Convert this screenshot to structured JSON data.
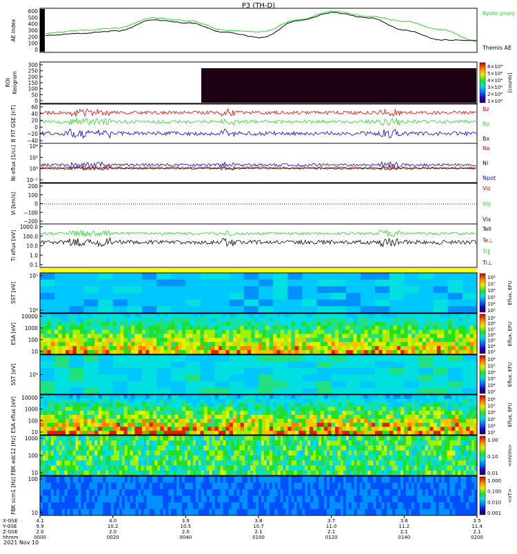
{
  "page": {
    "title": "P3 (TH-D)",
    "footer_date": "2021 Nov 10"
  },
  "time_axis": {
    "row_labels": [
      "X-GSE",
      "Y-GSE",
      "Z-GSE",
      "hhmm"
    ],
    "columns": [
      {
        "x": "4.1",
        "y": "9.9",
        "z": "2.0",
        "t": "0000"
      },
      {
        "x": "4.0",
        "y": "10.2",
        "z": "2.0",
        "t": "0020"
      },
      {
        "x": "3.9",
        "y": "10.5",
        "z": "2.0",
        "t": "0040"
      },
      {
        "x": "3.8",
        "y": "10.7",
        "z": "2.1",
        "t": "0100"
      },
      {
        "x": "3.7",
        "y": "11.0",
        "z": "2.1",
        "t": "0120"
      },
      {
        "x": "3.6",
        "y": "11.2",
        "z": "2.1",
        "t": "0140"
      },
      {
        "x": "3.5",
        "y": "11.4",
        "z": "2.1",
        "t": "0200"
      }
    ]
  },
  "colors": {
    "red": "#e00000",
    "green": "#22dd22",
    "blue": "#0000cc",
    "black": "#000000",
    "keogram_fill": "#1a0010",
    "yellow_band": "#ffff00"
  },
  "chart_data": [
    {
      "id": "ae",
      "type": "line",
      "ylabel": "AE Index",
      "yticks": [
        "600",
        "500",
        "400",
        "300",
        "200",
        "100",
        "0"
      ],
      "ylim": [
        0,
        600
      ],
      "x": [
        0,
        10,
        20,
        30,
        40,
        50,
        60,
        70,
        80,
        90,
        100,
        110,
        120
      ],
      "series": [
        {
          "name": "Kyoto proxy AE",
          "color": "#22dd22",
          "values": [
            260,
            300,
            330,
            470,
            430,
            300,
            280,
            440,
            560,
            490,
            420,
            310,
            150
          ]
        },
        {
          "name": "Themis AE",
          "color": "#000000",
          "values": [
            230,
            260,
            290,
            440,
            400,
            270,
            200,
            430,
            540,
            470,
            300,
            170,
            160
          ]
        }
      ]
    },
    {
      "id": "keogram",
      "type": "heatmap",
      "ylabel1": "ROI",
      "ylabel2": "Keogram",
      "yticks": [
        "300",
        "250",
        "200",
        "150",
        "100",
        "50",
        "0"
      ],
      "colorbar_ticks": [
        "6×10⁴",
        "5×10⁴",
        "4×10⁴",
        "3×10⁴",
        "2×10⁴",
        "1×10⁴"
      ],
      "colorbar_label": "[counts]"
    },
    {
      "id": "bfield",
      "type": "line",
      "ylabel": "B FIT GSE [nT]",
      "yticks": [
        "60",
        "40",
        "20",
        "0",
        "−20",
        "−40"
      ],
      "series": [
        {
          "name": "Bz",
          "color": "#e00000"
        },
        {
          "name": "By",
          "color": "#22dd22"
        },
        {
          "name": "Bx",
          "color": "#0000cc"
        }
      ]
    },
    {
      "id": "density",
      "type": "line",
      "ylabel": "Ni eflux [1/cc]",
      "yticks": [
        "10⁴",
        "10²",
        "10⁰",
        "10⁻²"
      ],
      "series": [
        {
          "name": "Ne",
          "color": "#e00000"
        },
        {
          "name": "Ni",
          "color": "#000000"
        },
        {
          "name": "Npot",
          "color": "#0000cc"
        }
      ]
    },
    {
      "id": "velocity",
      "type": "line",
      "ylabel": "Vi [km/s]",
      "yticks": [
        "200",
        "100",
        "0",
        "−100",
        "−200"
      ],
      "series": [
        {
          "name": "Viz",
          "color": "#e00000"
        },
        {
          "name": "Viy",
          "color": "#22dd22"
        },
        {
          "name": "Vix",
          "color": "#0000cc"
        }
      ]
    },
    {
      "id": "temperature",
      "type": "line",
      "ylabel": "Ti eflux [eV]",
      "yticks": [
        "1000.0",
        "100.0",
        "10.0",
        "1.0",
        "0.1"
      ],
      "series": [
        {
          "name": "Tell",
          "color": "#000000"
        },
        {
          "name": "Te⊥",
          "color": "#e00000"
        },
        {
          "name": "Ti‖",
          "color": "#22dd22"
        },
        {
          "name": "Ti⊥",
          "color": "#0000cc"
        }
      ]
    },
    {
      "id": "sst_e",
      "type": "heatmap",
      "ylabel": "SST [eV]",
      "yticks": [
        "10⁵",
        "10⁴"
      ],
      "colorbar_ticks": [
        "10⁸",
        "10⁷",
        "10⁶",
        "10⁵",
        "10⁴",
        "10³"
      ],
      "colorbar_label": "Eflux, EFU"
    },
    {
      "id": "esa_e",
      "type": "heatmap",
      "ylabel": "ESA [eV]",
      "yticks": [
        "10000",
        "1000",
        "100",
        "10"
      ],
      "colorbar_ticks": [
        "10⁹",
        "10⁸",
        "10⁷",
        "10⁶",
        "10⁵",
        "10⁴",
        "10³"
      ],
      "colorbar_label": "Eflux, EFU"
    },
    {
      "id": "sst_i",
      "type": "heatmap",
      "ylabel": "SST [eV]",
      "yticks": [
        "10⁵"
      ],
      "colorbar_ticks": [
        "10⁸",
        "10⁷",
        "10⁶",
        "10⁵",
        "10⁴",
        "10³"
      ],
      "colorbar_label": "Eflux, EFU"
    },
    {
      "id": "esa_i",
      "type": "heatmap",
      "ylabel": "ESA eflux [eV]",
      "yticks": [
        "10000",
        "1000",
        "100",
        "10"
      ],
      "colorbar_ticks": [
        "10⁸",
        "10⁷",
        "10⁶",
        "10⁵",
        "10⁴",
        "10³"
      ],
      "colorbar_label": "Eflux, EFU"
    },
    {
      "id": "fbk_e",
      "type": "heatmap",
      "ylabel": "FBK edc12 [Hz]",
      "yticks": [
        "1000",
        "100",
        "10"
      ],
      "colorbar_ticks": [
        "1.00",
        "0.10",
        "0.01"
      ],
      "colorbar_label": "<mV/m>"
    },
    {
      "id": "fbk_b",
      "type": "heatmap",
      "ylabel": "FBK scm1 [Hz]",
      "yticks": [
        "100",
        "10"
      ],
      "colorbar_ticks": [
        "1.000",
        "0.100",
        "0.010",
        "0.001"
      ],
      "colorbar_label": "<nT>"
    }
  ]
}
